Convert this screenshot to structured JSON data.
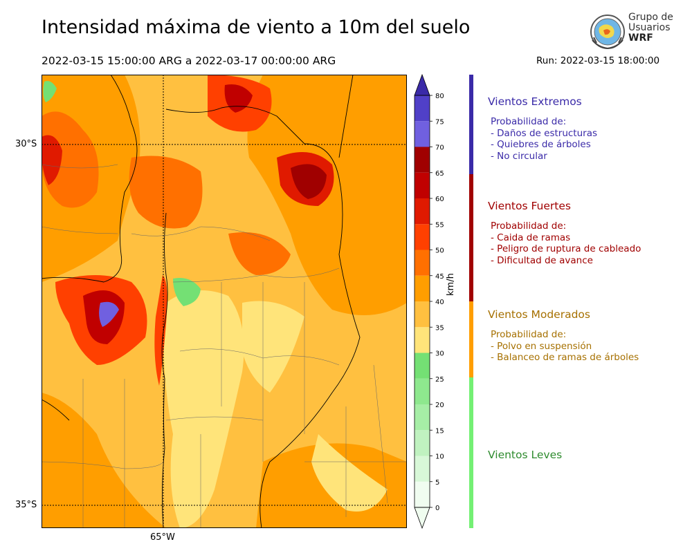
{
  "header": {
    "title": "Intensidad máxima de viento a 10m del suelo",
    "period": "2022-03-15 15:00:00 ARG  a  2022-03-17 00:00:00 ARG",
    "run": "Run: 2022-03-15 18:00:00"
  },
  "logo": {
    "line1": "Grupo de",
    "line2": "Usuarios",
    "line3": "WRF"
  },
  "map": {
    "lat_labels": [
      "30°S",
      "35°S"
    ],
    "lon_labels": [
      "65°W"
    ]
  },
  "colorbar": {
    "unit": "km/h",
    "ticks": [
      "0",
      "5",
      "10",
      "15",
      "20",
      "25",
      "30",
      "35",
      "40",
      "45",
      "50",
      "55",
      "60",
      "65",
      "70",
      "75",
      "80"
    ],
    "colors": [
      "#f0fdf0",
      "#d8f8d8",
      "#c0f2c0",
      "#a6eea6",
      "#8ee88e",
      "#74e074",
      "#ffe47a",
      "#ffc040",
      "#ff9e00",
      "#ff7000",
      "#ff4000",
      "#e01a00",
      "#c00000",
      "#a00000",
      "#7060e0",
      "#5040c8",
      "#3a2aa8"
    ]
  },
  "legend": [
    {
      "title": "Vientos Extremos",
      "color": "#3a2aa8",
      "lines": [
        "Probabilidad de:",
        "- Daños de estructuras",
        "- Quiebres de árboles",
        "- No circular"
      ]
    },
    {
      "title": "Vientos Fuertes",
      "color": "#a00000",
      "lines": [
        "Probabilidad de:",
        "- Caida de ramas",
        "- Peligro de ruptura de cableado",
        "- Dificultad de avance"
      ]
    },
    {
      "title": "Vientos Moderados",
      "color": "#a67000",
      "bar_color": "#ff9e00",
      "lines": [
        "Probabilidad de:",
        "- Polvo en suspensión",
        "- Balanceo de ramas de árboles"
      ]
    },
    {
      "title": "Vientos Leves",
      "color": "#2e8b2e",
      "bar_color": "#74f074",
      "lines": []
    }
  ]
}
